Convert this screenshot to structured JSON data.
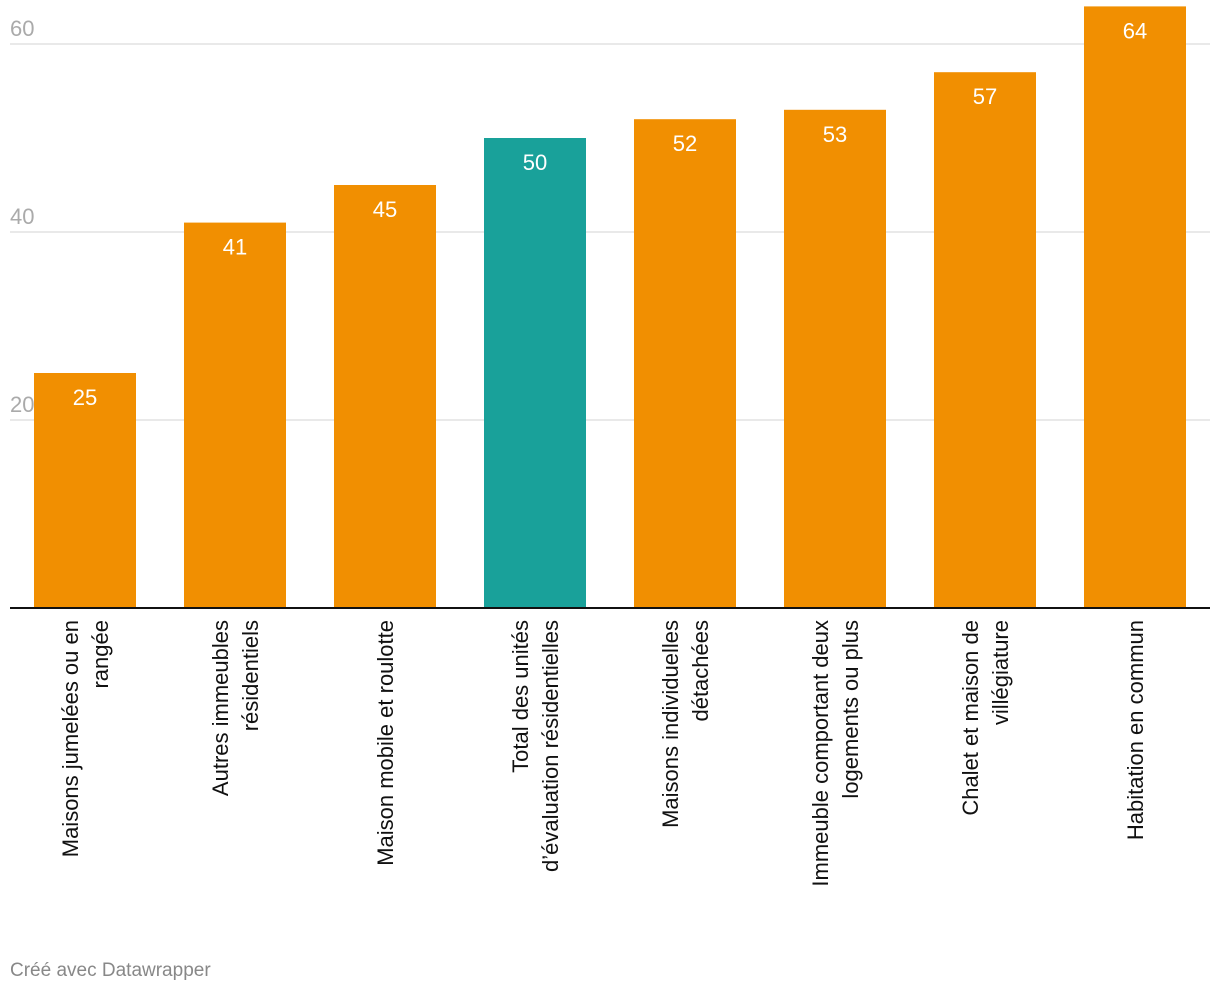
{
  "chart_data": {
    "type": "bar",
    "categories": [
      [
        "Maisons jumelées ou en",
        "rangée"
      ],
      [
        "Autres immeubles",
        "résidentiels"
      ],
      [
        "Maison mobile et roulotte"
      ],
      [
        "Total des unités",
        "d’évaluation résidentielles"
      ],
      [
        "Maisons individuelles",
        "détachées"
      ],
      [
        "Immeuble comportant deux",
        "logements ou plus"
      ],
      [
        "Chalet et maison de",
        "villégiature"
      ],
      [
        "Habitation en commun"
      ]
    ],
    "values": [
      25,
      41,
      45,
      50,
      52,
      53,
      57,
      64
    ],
    "value_labels": [
      "25",
      "41",
      "45",
      "50",
      "52",
      "53",
      "57",
      "64"
    ],
    "highlight_index": 3,
    "ylim": [
      0,
      64
    ],
    "yticks": [
      20,
      40,
      60
    ],
    "ytick_labels": [
      "20",
      "40",
      "60"
    ],
    "grid": true,
    "colors": {
      "bar": "#f18f01",
      "highlight": "#19a19a",
      "grid": "#e2e2e2",
      "baseline": "#111111"
    }
  },
  "footer": {
    "credit": "Créé avec Datawrapper"
  }
}
